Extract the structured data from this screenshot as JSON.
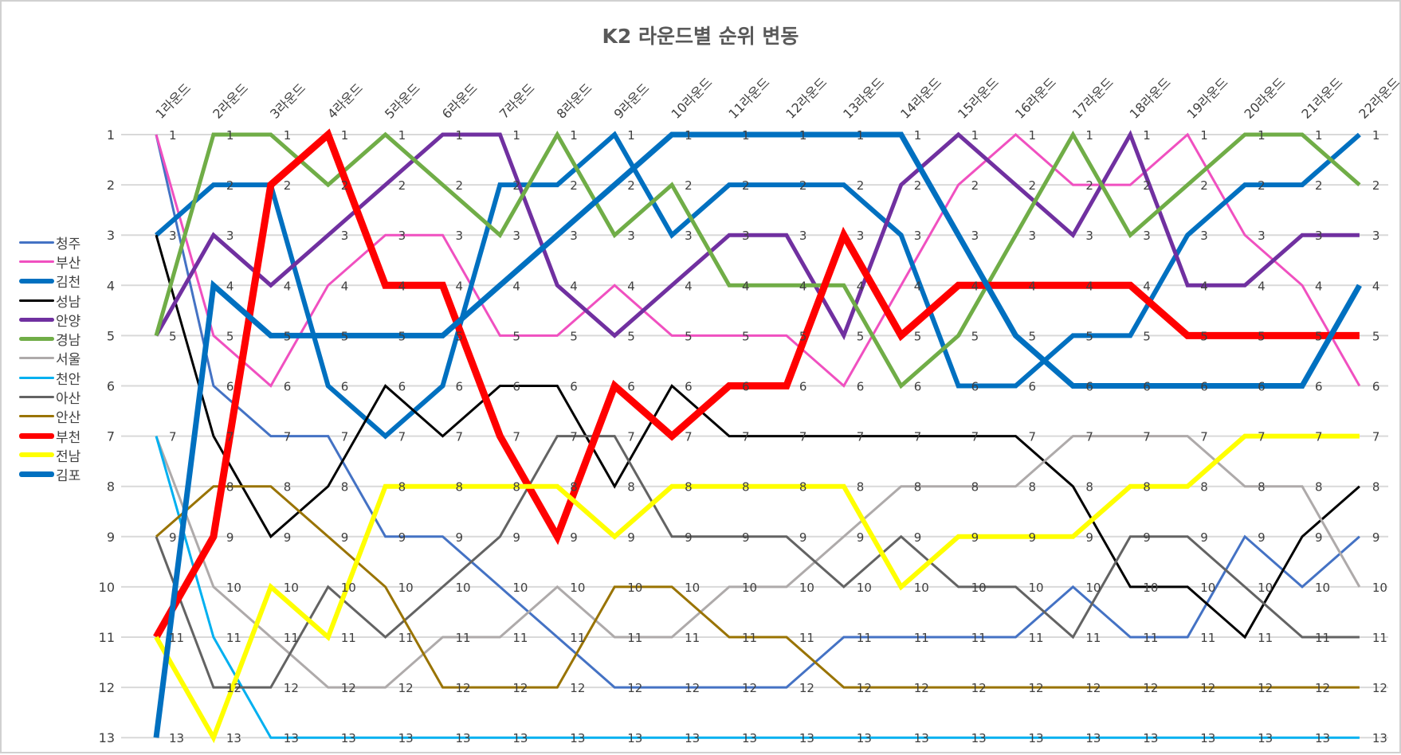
{
  "chart_data": {
    "type": "line",
    "title": "K2 라운드별 순위 변동",
    "xlabel": "",
    "ylabel": "",
    "y_inverted": true,
    "ylim": [
      1,
      13
    ],
    "grid": true,
    "legend_position": "left",
    "categories": [
      "1라운드",
      "2라운드",
      "3라운드",
      "4라운드",
      "5라운드",
      "6라운드",
      "7라운드",
      "8라운드",
      "9라운드",
      "10라운드",
      "11라운드",
      "12라운드",
      "13라운드",
      "14라운드",
      "15라운드",
      "16라운드",
      "17라운드",
      "18라운드",
      "19라운드",
      "20라운드",
      "21라운드",
      "22라운드"
    ],
    "y_ticks": [
      1,
      2,
      3,
      4,
      5,
      6,
      7,
      8,
      9,
      10,
      11,
      12,
      13
    ],
    "series": [
      {
        "name": "청주",
        "color": "#4472C4",
        "width": 3,
        "values": [
          1,
          6,
          7,
          7,
          9,
          9,
          10,
          11,
          12,
          12,
          12,
          12,
          11,
          11,
          11,
          11,
          10,
          11,
          11,
          9,
          10,
          9
        ]
      },
      {
        "name": "부산",
        "color": "#F050C0",
        "width": 3,
        "values": [
          1,
          5,
          6,
          4,
          3,
          3,
          5,
          5,
          4,
          5,
          5,
          5,
          6,
          4,
          2,
          1,
          2,
          2,
          1,
          3,
          4,
          6
        ]
      },
      {
        "name": "김천",
        "color": "#0070C0",
        "width": 6,
        "values": [
          3,
          2,
          2,
          6,
          7,
          6,
          2,
          2,
          1,
          3,
          2,
          2,
          2,
          3,
          6,
          6,
          5,
          5,
          3,
          2,
          2,
          1
        ]
      },
      {
        "name": "성남",
        "color": "#000000",
        "width": 3,
        "values": [
          3,
          7,
          9,
          8,
          6,
          7,
          6,
          6,
          8,
          6,
          7,
          7,
          7,
          7,
          7,
          7,
          8,
          10,
          10,
          11,
          9,
          8
        ]
      },
      {
        "name": "안양",
        "color": "#7030A0",
        "width": 5,
        "values": [
          5,
          3,
          4,
          3,
          2,
          1,
          1,
          4,
          5,
          4,
          3,
          3,
          5,
          2,
          1,
          2,
          3,
          1,
          4,
          4,
          3,
          3
        ]
      },
      {
        "name": "경남",
        "color": "#70AD47",
        "width": 5,
        "values": [
          5,
          1,
          1,
          2,
          1,
          2,
          3,
          1,
          3,
          2,
          4,
          4,
          4,
          6,
          5,
          3,
          1,
          3,
          2,
          1,
          1,
          2
        ]
      },
      {
        "name": "서울",
        "color": "#AEAAAA",
        "width": 3,
        "values": [
          7,
          10,
          11,
          12,
          12,
          11,
          11,
          10,
          11,
          11,
          10,
          10,
          9,
          8,
          8,
          8,
          7,
          7,
          7,
          8,
          8,
          10
        ]
      },
      {
        "name": "천안",
        "color": "#00B0F0",
        "width": 3,
        "values": [
          7,
          11,
          13,
          13,
          13,
          13,
          13,
          13,
          13,
          13,
          13,
          13,
          13,
          13,
          13,
          13,
          13,
          13,
          13,
          13,
          13,
          13
        ]
      },
      {
        "name": "아산",
        "color": "#636363",
        "width": 3,
        "values": [
          9,
          12,
          12,
          10,
          11,
          10,
          9,
          7,
          7,
          9,
          9,
          9,
          10,
          9,
          10,
          10,
          11,
          9,
          9,
          10,
          11,
          11
        ]
      },
      {
        "name": "안산",
        "color": "#997300",
        "width": 3,
        "values": [
          9,
          8,
          8,
          9,
          10,
          12,
          12,
          12,
          10,
          10,
          11,
          11,
          12,
          12,
          12,
          12,
          12,
          12,
          12,
          12,
          12,
          12
        ]
      },
      {
        "name": "부천",
        "color": "#FF0000",
        "width": 9,
        "values": [
          11,
          9,
          2,
          1,
          4,
          4,
          7,
          9,
          6,
          7,
          6,
          6,
          3,
          5,
          4,
          4,
          4,
          4,
          5,
          5,
          5,
          5
        ]
      },
      {
        "name": "전남",
        "color": "#FFFF00",
        "width": 6,
        "values": [
          11,
          13,
          10,
          11,
          8,
          8,
          8,
          8,
          9,
          8,
          8,
          8,
          8,
          10,
          9,
          9,
          9,
          8,
          8,
          7,
          7,
          7
        ]
      },
      {
        "name": "김포",
        "color": "#0070C0",
        "width": 7,
        "values": [
          13,
          4,
          5,
          5,
          5,
          5,
          4,
          3,
          2,
          1,
          1,
          1,
          1,
          1,
          3,
          5,
          6,
          6,
          6,
          6,
          6,
          4
        ]
      }
    ]
  }
}
